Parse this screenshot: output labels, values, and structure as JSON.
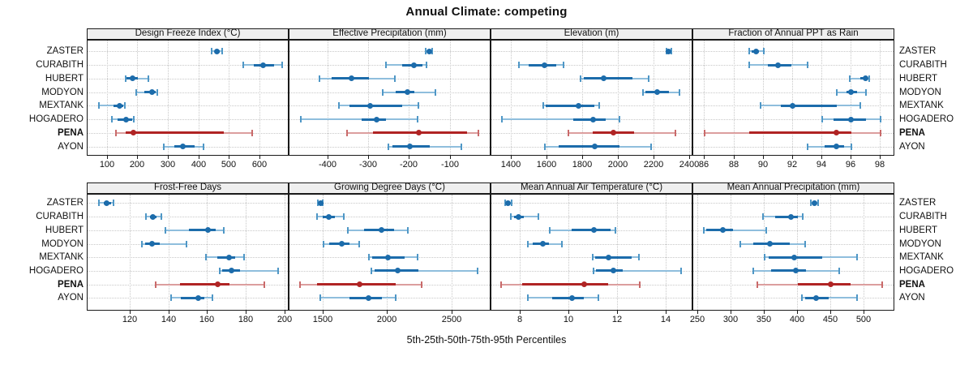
{
  "title": "Annual Climate: competing",
  "caption": "5th-25th-50th-75th-95th Percentiles",
  "sites": [
    "ZASTER",
    "CURABITH",
    "HUBERT",
    "MODYON",
    "MEXTANK",
    "HOGADERO",
    "PENA",
    "AYON"
  ],
  "highlight_site": "PENA",
  "colors": {
    "series_main": "#1c6cab",
    "series_whisker": "#8fbedd",
    "series_cap": "#4f97c6",
    "highlight_main": "#b02424",
    "highlight_whisker": "#dc9e9e",
    "highlight_cap": "#c96a6a",
    "strip_bg": "#efefef",
    "grid": "#c8c8c8",
    "frame": "#1a1a1a"
  },
  "chart_data": [
    {
      "type": "dot-interval",
      "title": "Design Freeze Index (°C)",
      "row": 0,
      "col": 0,
      "xlim": [
        35,
        695
      ],
      "ticks": [
        100,
        200,
        300,
        400,
        500,
        600
      ],
      "percentiles": [
        "5th",
        "25th",
        "50th",
        "75th",
        "95th"
      ],
      "series": [
        {
          "site": "ZASTER",
          "values": [
            440,
            452,
            459,
            466,
            475
          ]
        },
        {
          "site": "CURABITH",
          "values": [
            545,
            578,
            609,
            644,
            670
          ]
        },
        {
          "site": "HUBERT",
          "values": [
            160,
            163,
            182,
            199,
            235
          ]
        },
        {
          "site": "MODYON",
          "values": [
            195,
            221,
            246,
            258,
            264
          ]
        },
        {
          "site": "MEXTANK",
          "values": [
            72,
            120,
            140,
            152,
            156
          ]
        },
        {
          "site": "HOGADERO",
          "values": [
            114,
            133,
            162,
            180,
            186
          ]
        },
        {
          "site": "PENA",
          "values": [
            127,
            160,
            184,
            481,
            574
          ]
        },
        {
          "site": "AYON",
          "values": [
            285,
            318,
            347,
            384,
            415
          ]
        }
      ]
    },
    {
      "type": "dot-interval",
      "title": "Effective Precipitation (mm)",
      "row": 0,
      "col": 1,
      "xlim": [
        -495,
        0
      ],
      "ticks": [
        -400,
        -300,
        -200,
        -100
      ],
      "percentiles": [
        "5th",
        "25th",
        "50th",
        "75th",
        "95th"
      ],
      "series": [
        {
          "site": "ZASTER",
          "values": [
            -161,
            -157,
            -153,
            -149,
            -146
          ]
        },
        {
          "site": "CURABITH",
          "values": [
            -259,
            -218,
            -189,
            -168,
            -159
          ]
        },
        {
          "site": "HUBERT",
          "values": [
            -421,
            -391,
            -343,
            -300,
            -236
          ]
        },
        {
          "site": "MODYON",
          "values": [
            -266,
            -235,
            -205,
            -188,
            -138
          ]
        },
        {
          "site": "MEXTANK",
          "values": [
            -373,
            -348,
            -298,
            -218,
            -179
          ]
        },
        {
          "site": "HOGADERO",
          "values": [
            -468,
            -318,
            -281,
            -258,
            -180
          ]
        },
        {
          "site": "PENA",
          "values": [
            -353,
            -290,
            -178,
            -60,
            -32
          ]
        },
        {
          "site": "AYON",
          "values": [
            -253,
            -243,
            -199,
            -151,
            -73
          ]
        }
      ]
    },
    {
      "type": "dot-interval",
      "title": "Elevation (m)",
      "row": 0,
      "col": 2,
      "xlim": [
        1285,
        2420
      ],
      "ticks": [
        1400,
        1600,
        1800,
        2000,
        2200,
        2400
      ],
      "percentiles": [
        "5th",
        "25th",
        "50th",
        "75th",
        "95th"
      ],
      "series": [
        {
          "site": "ZASTER",
          "values": [
            2268,
            2275,
            2281,
            2288,
            2298
          ]
        },
        {
          "site": "CURABITH",
          "values": [
            1440,
            1495,
            1582,
            1648,
            1690
          ]
        },
        {
          "site": "HUBERT",
          "values": [
            1788,
            1805,
            1918,
            2079,
            2170
          ]
        },
        {
          "site": "MODYON",
          "values": [
            2136,
            2150,
            2218,
            2284,
            2344
          ]
        },
        {
          "site": "MEXTANK",
          "values": [
            1576,
            1592,
            1777,
            1865,
            1890
          ]
        },
        {
          "site": "HOGADERO",
          "values": [
            1345,
            1745,
            1855,
            1930,
            2005
          ]
        },
        {
          "site": "PENA",
          "values": [
            1716,
            1853,
            1971,
            2088,
            2321
          ]
        },
        {
          "site": "AYON",
          "values": [
            1587,
            1664,
            1868,
            2005,
            2183
          ]
        }
      ]
    },
    {
      "type": "dot-interval",
      "title": "Fraction of Annual PPT as Rain",
      "row": 0,
      "col": 3,
      "xlim": [
        85.2,
        99
      ],
      "ticks": [
        86,
        88,
        90,
        92,
        94,
        96,
        98
      ],
      "percentiles": [
        "5th",
        "25th",
        "50th",
        "75th",
        "95th"
      ],
      "series": [
        {
          "site": "ZASTER",
          "values": [
            89.0,
            89.2,
            89.5,
            89.7,
            90.0
          ]
        },
        {
          "site": "CURABITH",
          "values": [
            89.0,
            90.3,
            91.0,
            91.9,
            93.0
          ]
        },
        {
          "site": "HUBERT",
          "values": [
            95.9,
            96.6,
            97.0,
            97.1,
            97.2
          ]
        },
        {
          "site": "MODYON",
          "values": [
            95.0,
            95.7,
            96.0,
            96.4,
            97.0
          ]
        },
        {
          "site": "MEXTANK",
          "values": [
            89.8,
            91.2,
            92.0,
            95.0,
            96.6
          ]
        },
        {
          "site": "HOGADERO",
          "values": [
            94.0,
            94.8,
            96.0,
            97.0,
            98.0
          ]
        },
        {
          "site": "PENA",
          "values": [
            86.0,
            89.0,
            95.0,
            96.0,
            98.0
          ]
        },
        {
          "site": "AYON",
          "values": [
            93.0,
            94.2,
            95.0,
            95.5,
            96.0
          ]
        }
      ]
    },
    {
      "type": "dot-interval",
      "title": "Frost-Free Days",
      "row": 1,
      "col": 0,
      "xlim": [
        98,
        202
      ],
      "ticks": [
        120,
        140,
        160,
        180,
        200
      ],
      "percentiles": [
        "5th",
        "25th",
        "50th",
        "75th",
        "95th"
      ],
      "series": [
        {
          "site": "ZASTER",
          "values": [
            104,
            106.5,
            108,
            110,
            111.5
          ]
        },
        {
          "site": "CURABITH",
          "values": [
            128,
            130,
            131.5,
            133.5,
            136
          ]
        },
        {
          "site": "HUBERT",
          "values": [
            138,
            150,
            160,
            164,
            168
          ]
        },
        {
          "site": "MODYON",
          "values": [
            126,
            127.5,
            131,
            135,
            149
          ]
        },
        {
          "site": "MEXTANK",
          "values": [
            159,
            165,
            171,
            174,
            178.5
          ]
        },
        {
          "site": "HOGADERO",
          "values": [
            166,
            167.5,
            172,
            176.5,
            196
          ]
        },
        {
          "site": "PENA",
          "values": [
            133,
            145.5,
            165,
            171,
            189
          ]
        },
        {
          "site": "AYON",
          "values": [
            141,
            146,
            155,
            158,
            162.5
          ]
        }
      ]
    },
    {
      "type": "dot-interval",
      "title": "Growing Degree Days (°C)",
      "row": 1,
      "col": 1,
      "xlim": [
        1233,
        2805
      ],
      "ticks": [
        1500,
        2000,
        2500
      ],
      "percentiles": [
        "5th",
        "25th",
        "50th",
        "75th",
        "95th"
      ],
      "series": [
        {
          "site": "ZASTER",
          "values": [
            1455,
            1465,
            1475,
            1483,
            1492
          ]
        },
        {
          "site": "CURABITH",
          "values": [
            1448,
            1490,
            1538,
            1588,
            1657
          ]
        },
        {
          "site": "HUBERT",
          "values": [
            1685,
            1815,
            1952,
            2046,
            2157
          ]
        },
        {
          "site": "MODYON",
          "values": [
            1496,
            1542,
            1638,
            1700,
            1773
          ]
        },
        {
          "site": "MEXTANK",
          "values": [
            1853,
            1878,
            2000,
            2130,
            2231
          ]
        },
        {
          "site": "HOGADERO",
          "values": [
            1868,
            1899,
            2073,
            2235,
            2697
          ]
        },
        {
          "site": "PENA",
          "values": [
            1315,
            1448,
            1780,
            2057,
            2261
          ]
        },
        {
          "site": "AYON",
          "values": [
            1475,
            1700,
            1851,
            1952,
            2063
          ]
        }
      ]
    },
    {
      "type": "dot-interval",
      "title": "Mean Annual Air Temperature (°C)",
      "row": 1,
      "col": 2,
      "xlim": [
        6.8,
        15.1
      ],
      "ticks": [
        8,
        10,
        12,
        14
      ],
      "percentiles": [
        "5th",
        "25th",
        "50th",
        "75th",
        "95th"
      ],
      "series": [
        {
          "site": "ZASTER",
          "values": [
            7.35,
            7.42,
            7.48,
            7.55,
            7.62
          ]
        },
        {
          "site": "CURABITH",
          "values": [
            7.6,
            7.72,
            7.92,
            8.15,
            8.72
          ]
        },
        {
          "site": "HUBERT",
          "values": [
            9.2,
            10.1,
            11.0,
            11.7,
            11.9
          ]
        },
        {
          "site": "MODYON",
          "values": [
            8.3,
            8.5,
            8.9,
            9.15,
            9.7
          ]
        },
        {
          "site": "MEXTANK",
          "values": [
            10.95,
            11.05,
            11.6,
            12.55,
            12.85
          ]
        },
        {
          "site": "HOGADERO",
          "values": [
            11.0,
            11.1,
            11.8,
            12.2,
            14.6
          ]
        },
        {
          "site": "PENA",
          "values": [
            7.2,
            8.05,
            10.6,
            11.6,
            12.9
          ]
        },
        {
          "site": "AYON",
          "values": [
            8.3,
            9.3,
            10.1,
            10.6,
            11.2
          ]
        }
      ]
    },
    {
      "type": "dot-interval",
      "title": "Mean Annual Precipitation (mm)",
      "row": 1,
      "col": 3,
      "xlim": [
        243,
        547
      ],
      "ticks": [
        250,
        300,
        350,
        400,
        450,
        500
      ],
      "percentiles": [
        "5th",
        "25th",
        "50th",
        "75th",
        "95th"
      ],
      "series": [
        {
          "site": "ZASTER",
          "values": [
            420,
            423,
            426,
            428,
            431
          ]
        },
        {
          "site": "CURABITH",
          "values": [
            348,
            366,
            390,
            400,
            408
          ]
        },
        {
          "site": "HUBERT",
          "values": [
            259,
            263,
            288,
            303,
            353
          ]
        },
        {
          "site": "MODYON",
          "values": [
            314,
            333,
            358,
            388,
            411
          ]
        },
        {
          "site": "MEXTANK",
          "values": [
            350,
            356,
            395,
            437,
            490
          ]
        },
        {
          "site": "HOGADERO",
          "values": [
            333,
            360,
            397,
            413,
            463
          ]
        },
        {
          "site": "PENA",
          "values": [
            339,
            400,
            450,
            480,
            527
          ]
        },
        {
          "site": "AYON",
          "values": [
            407,
            411,
            428,
            447,
            490
          ]
        }
      ]
    }
  ]
}
